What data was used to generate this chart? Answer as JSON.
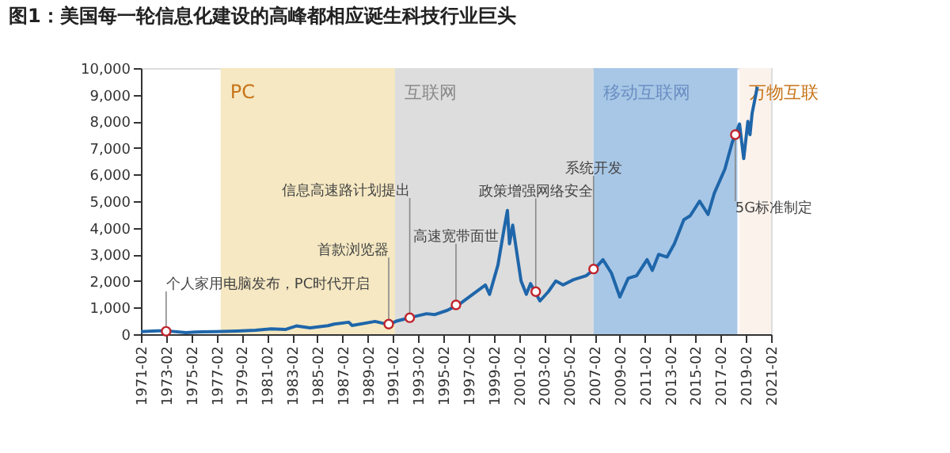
{
  "chart_data": {
    "type": "line",
    "title": "图1：美国每一轮信息化建设的高峰都相应诞生科技行业巨头",
    "x": [
      "1971-02",
      "1972-06",
      "1973-01",
      "1974-09",
      "1975-06",
      "1977-01",
      "1978-10",
      "1980-03",
      "1981-06",
      "1982-08",
      "1983-06",
      "1984-07",
      "1985-12",
      "1986-06",
      "1987-08",
      "1987-11",
      "1989-09",
      "1990-10",
      "1991-06",
      "1992-06",
      "1993-10",
      "1994-06",
      "1995-06",
      "1996-06",
      "1997-06",
      "1998-06",
      "1998-10",
      "1999-06",
      "1999-12",
      "2000-03",
      "2000-05",
      "2000-08",
      "2001-04",
      "2001-09",
      "2002-01",
      "2002-10",
      "2003-06",
      "2004-01",
      "2004-08",
      "2005-06",
      "2006-06",
      "2007-02",
      "2007-10",
      "2008-06",
      "2009-02",
      "2009-10",
      "2010-06",
      "2011-04",
      "2011-09",
      "2012-03",
      "2012-11",
      "2013-06",
      "2014-03",
      "2014-09",
      "2015-06",
      "2016-02",
      "2016-08",
      "2017-06",
      "2018-01",
      "2018-08",
      "2018-12",
      "2019-04",
      "2019-06",
      "2019-08",
      "2020-01"
    ],
    "series": [
      {
        "color": "#1f66aa",
        "values": [
          100,
          130,
          130,
          60,
          80,
          100,
          120,
          150,
          200,
          180,
          310,
          240,
          320,
          380,
          450,
          330,
          480,
          360,
          500,
          620,
          770,
          740,
          900,
          1150,
          1500,
          1850,
          1500,
          2600,
          4000,
          4650,
          3400,
          4100,
          2000,
          1500,
          1900,
          1250,
          1600,
          2000,
          1850,
          2050,
          2200,
          2450,
          2800,
          2300,
          1400,
          2100,
          2200,
          2800,
          2400,
          3000,
          2900,
          3400,
          4300,
          4450,
          5000,
          4500,
          5300,
          6200,
          7200,
          7900,
          6600,
          8000,
          7500,
          8300,
          9300
        ]
      }
    ],
    "xlim": [
      "1971-02",
      "2021-02"
    ],
    "xticks": [
      "1971-02",
      "1973-02",
      "1975-02",
      "1977-02",
      "1979-02",
      "1981-02",
      "1983-02",
      "1985-02",
      "1987-02",
      "1989-02",
      "1991-02",
      "1993-02",
      "1995-02",
      "1997-02",
      "1999-02",
      "2001-02",
      "2003-02",
      "2005-02",
      "2007-02",
      "2009-02",
      "2011-02",
      "2013-02",
      "2015-02",
      "2017-02",
      "2019-02",
      "2021-02"
    ],
    "ylim": [
      0,
      10000
    ],
    "yticks": [
      {
        "value": 0,
        "label": "0"
      },
      {
        "value": 1000,
        "label": "1,000"
      },
      {
        "value": 2000,
        "label": "2,000"
      },
      {
        "value": 3000,
        "label": "3,000"
      },
      {
        "value": 4000,
        "label": "4,000"
      },
      {
        "value": 5000,
        "label": "5,000"
      },
      {
        "value": 6000,
        "label": "6,000"
      },
      {
        "value": 7000,
        "label": "7,000"
      },
      {
        "value": 8000,
        "label": "8,000"
      },
      {
        "value": 9000,
        "label": "9,000"
      },
      {
        "value": 10000,
        "label": "10,000"
      }
    ],
    "bands": [
      {
        "axis": "x",
        "from": "1977-06",
        "to": "1991-04",
        "label": "PC",
        "color": "#f5e8c2"
      },
      {
        "axis": "x",
        "from": "1991-04",
        "to": "2007-01",
        "label": "互联网",
        "color": "#dddddd"
      },
      {
        "axis": "x",
        "from": "2007-01",
        "to": "2018-06",
        "label": "移动互联网",
        "color": "#a8c7e6"
      },
      {
        "axis": "x",
        "from": "2018-08",
        "to": "2021-02",
        "label": "万物互联",
        "color": "#fbf2ec"
      }
    ],
    "annotations": [
      {
        "text": "个人家用电脑发布，PC时代开启",
        "x": "1973-02",
        "y": 110
      },
      {
        "text": "首款浏览器",
        "x": "1990-10",
        "y": 380
      },
      {
        "text": "信息高速路计划提出",
        "x": "1992-06",
        "y": 620
      },
      {
        "text": "高速宽带面世",
        "x": "1996-02",
        "y": 1100
      },
      {
        "text": "政策增强网络安全",
        "x": "2002-06",
        "y": 1600
      },
      {
        "text": "系统开发",
        "x": "2007-01",
        "y": 2450
      },
      {
        "text": "5G标准制定",
        "x": "2018-04",
        "y": 7500
      }
    ],
    "legend": false,
    "grid": false,
    "marker": "none",
    "line_style": "solid"
  }
}
